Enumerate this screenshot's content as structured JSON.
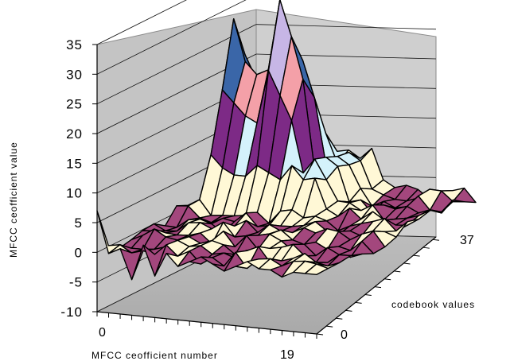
{
  "chart_data": {
    "type": "surface",
    "title": "",
    "ylabel": "MFCC ceofficient value",
    "xlabel": "MFCC ceofficient number",
    "zlabel": "codebook values",
    "yticks": [
      "35",
      "30",
      "25",
      "20",
      "15",
      "10",
      "5",
      "0",
      "-5",
      "-10"
    ],
    "ylim": [
      -10,
      35
    ],
    "x_range": [
      0,
      19
    ],
    "x_ends": [
      "0",
      "19"
    ],
    "z_range": [
      0,
      37
    ],
    "z_ends": [
      "0",
      "37"
    ],
    "color_bands": [
      {
        "range": [
          -10,
          -5
        ],
        "color": "#7a2e6a"
      },
      {
        "range": [
          -5,
          0
        ],
        "color": "#a3477d"
      },
      {
        "range": [
          0,
          5
        ],
        "color": "#fff8d6"
      },
      {
        "range": [
          5,
          10
        ],
        "color": "#d4f2fb"
      },
      {
        "range": [
          10,
          15
        ],
        "color": "#7d2a86"
      },
      {
        "range": [
          15,
          20
        ],
        "color": "#f4a0a8"
      },
      {
        "range": [
          20,
          25
        ],
        "color": "#3a66a8"
      },
      {
        "range": [
          25,
          30
        ],
        "color": "#c7b6e6"
      },
      {
        "range": [
          30,
          35
        ],
        "color": "#ffffff"
      }
    ],
    "front_row_profile": [
      7,
      0,
      1,
      -4,
      2,
      -3,
      1,
      -1,
      0,
      1,
      0,
      -1,
      0,
      1,
      0,
      0,
      -1,
      0,
      0,
      0
    ],
    "peaks_along_x": [
      {
        "x": 1,
        "values": [
          8,
          18,
          29,
          22,
          12,
          6
        ]
      },
      {
        "x": 2,
        "values": [
          6,
          16,
          22,
          18,
          10,
          5
        ]
      },
      {
        "x": 3,
        "values": [
          5,
          14,
          20,
          15,
          8,
          4
        ]
      },
      {
        "x": 4,
        "values": [
          5,
          13,
          21,
          16,
          9,
          4
        ]
      },
      {
        "x": 5,
        "values": [
          7,
          22,
          33,
          25,
          15,
          7
        ]
      },
      {
        "x": 6,
        "values": [
          6,
          18,
          27,
          22,
          12,
          6
        ]
      },
      {
        "x": 7,
        "values": [
          5,
          14,
          20,
          16,
          9,
          5
        ]
      }
    ]
  }
}
